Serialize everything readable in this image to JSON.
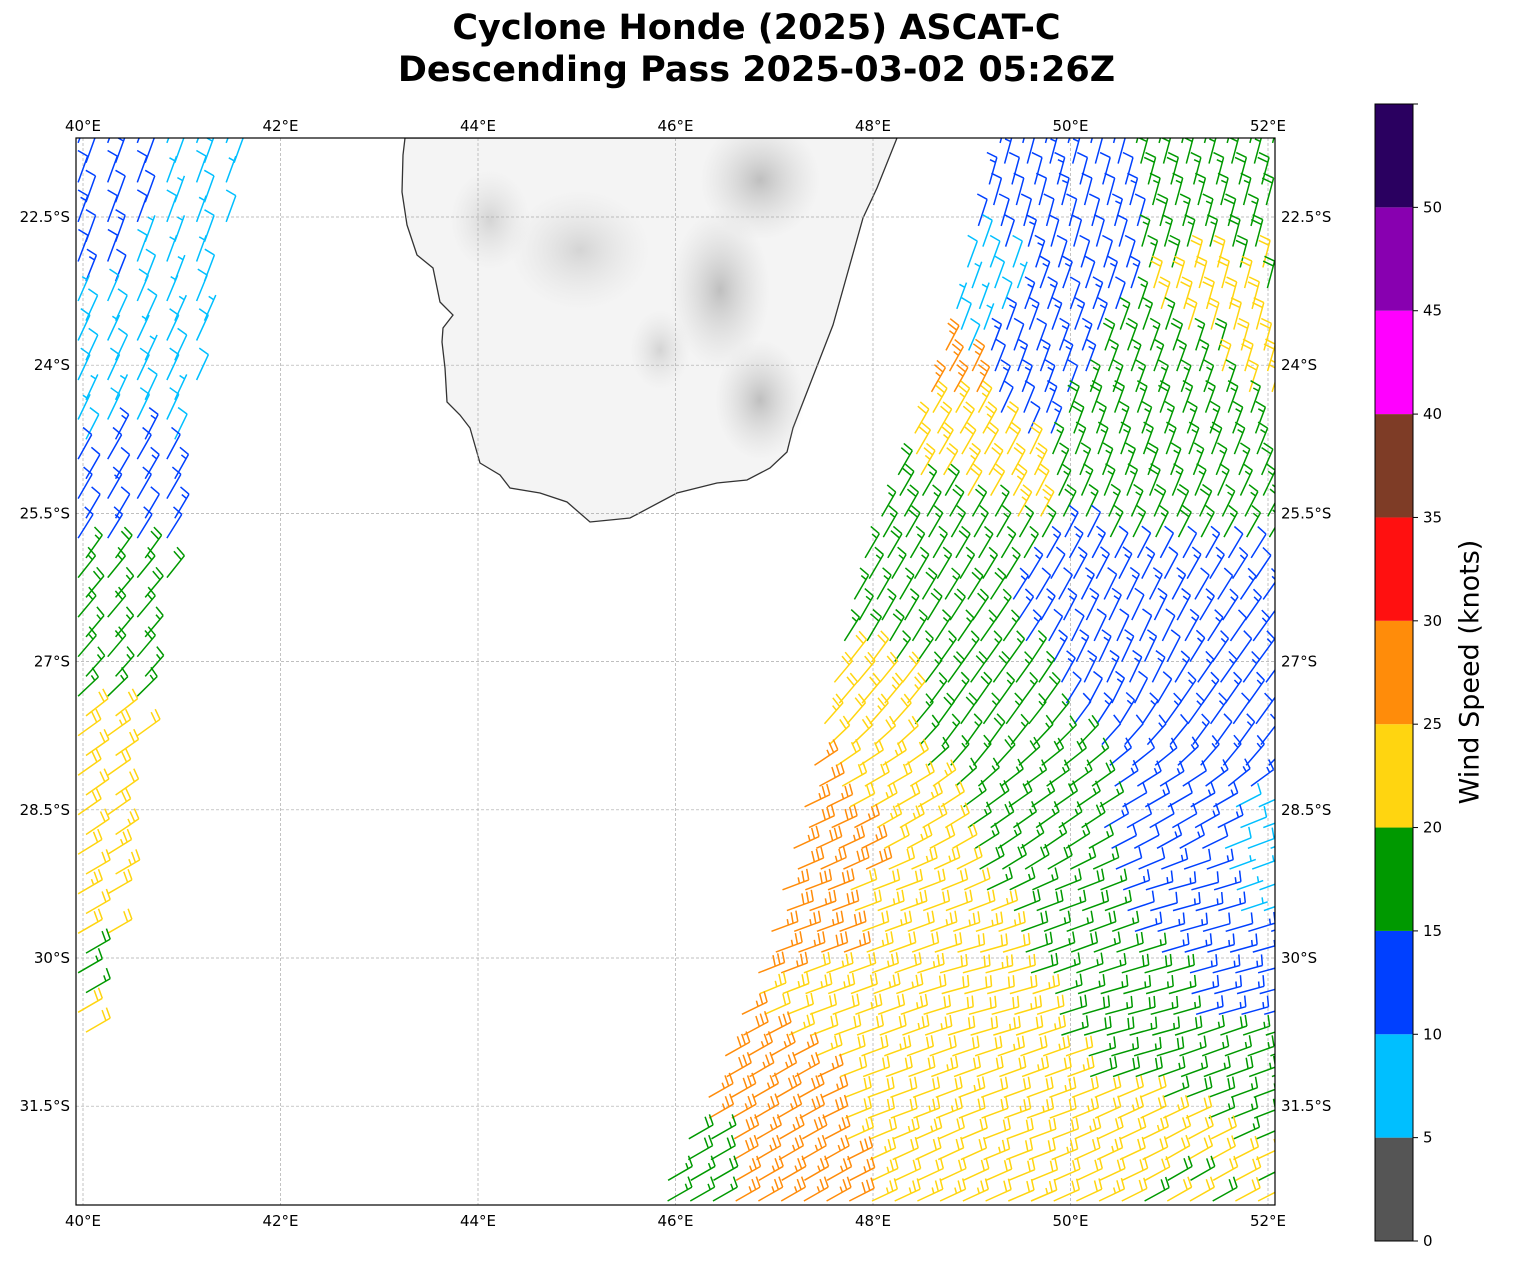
{
  "title": {
    "line1": "Cyclone Honde (2025) ASCAT-C",
    "line2": "Descending Pass 2025-03-02 05:26Z"
  },
  "map": {
    "lon_range": [
      39.93,
      52.07
    ],
    "lat_range": [
      -21.7,
      -32.5
    ],
    "lon_ticks": [
      {
        "v": 40,
        "label": "40°E"
      },
      {
        "v": 42,
        "label": "42°E"
      },
      {
        "v": 44,
        "label": "44°E"
      },
      {
        "v": 46,
        "label": "46°E"
      },
      {
        "v": 48,
        "label": "48°E"
      },
      {
        "v": 50,
        "label": "50°E"
      },
      {
        "v": 52,
        "label": "52°E"
      }
    ],
    "lat_ticks": [
      {
        "v": 22.5,
        "label": "22.5°S"
      },
      {
        "v": 24,
        "label": "24°S"
      },
      {
        "v": 25.5,
        "label": "25.5°S"
      },
      {
        "v": 27,
        "label": "27°S"
      },
      {
        "v": 28.5,
        "label": "28.5°S"
      },
      {
        "v": 30,
        "label": "30°S"
      },
      {
        "v": 31.5,
        "label": "31.5°S"
      }
    ],
    "land": "Madagascar (southern)"
  },
  "colorbar": {
    "label": "Wind Speed (knots)",
    "bins": [
      {
        "from": 0,
        "to": 5,
        "color": "#555555"
      },
      {
        "from": 5,
        "to": 10,
        "color": "#00bfff"
      },
      {
        "from": 10,
        "to": 15,
        "color": "#0040ff"
      },
      {
        "from": 15,
        "to": 20,
        "color": "#009900"
      },
      {
        "from": 20,
        "to": 25,
        "color": "#ffd510"
      },
      {
        "from": 25,
        "to": 30,
        "color": "#ff8c0a"
      },
      {
        "from": 30,
        "to": 35,
        "color": "#ff1010"
      },
      {
        "from": 35,
        "to": 40,
        "color": "#7e3c26"
      },
      {
        "from": 40,
        "to": 45,
        "color": "#ff00ff"
      },
      {
        "from": 45,
        "to": 50,
        "color": "#8800b0"
      },
      {
        "from": 50,
        "to": 55,
        "color": "#2a0060"
      }
    ],
    "ticks": [
      "0",
      "5",
      "10",
      "15",
      "20",
      "25",
      "30",
      "35",
      "40",
      "45",
      "50"
    ]
  },
  "chart_data": {
    "type": "wind-barbs",
    "units": "knots",
    "swaths": [
      {
        "name": "west",
        "lat_lon_east_edge": [
          [
            21.7,
            41.6
          ],
          [
            24,
            41.2
          ],
          [
            25.5,
            41.0
          ],
          [
            27,
            40.7
          ],
          [
            28.5,
            40.5
          ],
          [
            30,
            40.2
          ],
          [
            30.9,
            40.0
          ]
        ],
        "lon_west": 39.95
      },
      {
        "name": "east",
        "lat_lon_west_edge": [
          [
            21.7,
            49.3
          ],
          [
            24,
            48.7
          ],
          [
            26,
            47.9
          ],
          [
            28.5,
            47.3
          ],
          [
            30,
            46.9
          ],
          [
            31.5,
            46.3
          ],
          [
            32.5,
            45.8
          ]
        ],
        "lon_east": 52.05
      }
    ],
    "samples": [
      {
        "lon": 40.2,
        "lat": 22.3,
        "speed": 12,
        "dir": 20
      },
      {
        "lon": 41.1,
        "lat": 22.5,
        "speed": 8,
        "dir": 20
      },
      {
        "lon": 40.2,
        "lat": 24.2,
        "speed": 8,
        "dir": 25
      },
      {
        "lon": 40.9,
        "lat": 24.3,
        "speed": 8,
        "dir": 25
      },
      {
        "lon": 40.4,
        "lat": 25.2,
        "speed": 12,
        "dir": 30
      },
      {
        "lon": 40.4,
        "lat": 26.6,
        "speed": 17,
        "dir": 40
      },
      {
        "lon": 40.3,
        "lat": 28.2,
        "speed": 22,
        "dir": 55
      },
      {
        "lon": 40.2,
        "lat": 29.6,
        "speed": 22,
        "dir": 60
      },
      {
        "lon": 40.1,
        "lat": 30.3,
        "speed": 17,
        "dir": 60
      },
      {
        "lon": 40.0,
        "lat": 30.8,
        "speed": 21,
        "dir": 60
      },
      {
        "lon": 49.8,
        "lat": 22.3,
        "speed": 12,
        "dir": 15
      },
      {
        "lon": 51.5,
        "lat": 22.1,
        "speed": 17,
        "dir": 15
      },
      {
        "lon": 52.0,
        "lat": 23.2,
        "speed": 21,
        "dir": 15
      },
      {
        "lon": 49.0,
        "lat": 23.4,
        "speed": 8,
        "dir": 20
      },
      {
        "lon": 49.6,
        "lat": 23.9,
        "speed": 13,
        "dir": 20
      },
      {
        "lon": 50.6,
        "lat": 24.5,
        "speed": 17,
        "dir": 20
      },
      {
        "lon": 48.5,
        "lat": 24.1,
        "speed": 26,
        "dir": 30
      },
      {
        "lon": 48.7,
        "lat": 24.8,
        "speed": 22,
        "dir": 30
      },
      {
        "lon": 48.4,
        "lat": 25.6,
        "speed": 17,
        "dir": 30
      },
      {
        "lon": 48.0,
        "lat": 26.6,
        "speed": 17,
        "dir": 30
      },
      {
        "lon": 47.8,
        "lat": 27.3,
        "speed": 22,
        "dir": 40
      },
      {
        "lon": 49.0,
        "lat": 27.6,
        "speed": 17,
        "dir": 35
      },
      {
        "lon": 50.5,
        "lat": 27.0,
        "speed": 13,
        "dir": 25
      },
      {
        "lon": 51.5,
        "lat": 27.6,
        "speed": 13,
        "dir": 35
      },
      {
        "lon": 48.1,
        "lat": 28.5,
        "speed": 22,
        "dir": 60
      },
      {
        "lon": 47.5,
        "lat": 28.8,
        "speed": 27,
        "dir": 65
      },
      {
        "lon": 49.6,
        "lat": 28.6,
        "speed": 17,
        "dir": 55
      },
      {
        "lon": 51.0,
        "lat": 28.7,
        "speed": 13,
        "dir": 60
      },
      {
        "lon": 52.0,
        "lat": 29.0,
        "speed": 8,
        "dir": 70
      },
      {
        "lon": 51.1,
        "lat": 29.4,
        "speed": 13,
        "dir": 75
      },
      {
        "lon": 50.0,
        "lat": 29.7,
        "speed": 17,
        "dir": 70
      },
      {
        "lon": 48.2,
        "lat": 29.6,
        "speed": 22,
        "dir": 70
      },
      {
        "lon": 47.3,
        "lat": 29.6,
        "speed": 27,
        "dir": 70
      },
      {
        "lon": 47.6,
        "lat": 30.5,
        "speed": 22,
        "dir": 70
      },
      {
        "lon": 49.0,
        "lat": 30.3,
        "speed": 22,
        "dir": 75
      },
      {
        "lon": 50.6,
        "lat": 30.6,
        "speed": 17,
        "dir": 75
      },
      {
        "lon": 51.6,
        "lat": 30.3,
        "speed": 13,
        "dir": 75
      },
      {
        "lon": 51.5,
        "lat": 31.1,
        "speed": 17,
        "dir": 70
      },
      {
        "lon": 46.9,
        "lat": 31.3,
        "speed": 27,
        "dir": 60
      },
      {
        "lon": 48.1,
        "lat": 31.3,
        "speed": 22,
        "dir": 70
      },
      {
        "lon": 49.5,
        "lat": 31.5,
        "speed": 22,
        "dir": 70
      },
      {
        "lon": 50.5,
        "lat": 32.0,
        "speed": 22,
        "dir": 65
      },
      {
        "lon": 46.0,
        "lat": 32.3,
        "speed": 17,
        "dir": 60
      },
      {
        "lon": 47.1,
        "lat": 32.2,
        "speed": 27,
        "dir": 60
      },
      {
        "lon": 48.5,
        "lat": 32.3,
        "speed": 22,
        "dir": 65
      },
      {
        "lon": 51.0,
        "lat": 32.2,
        "speed": 21,
        "dir": 60
      }
    ]
  }
}
